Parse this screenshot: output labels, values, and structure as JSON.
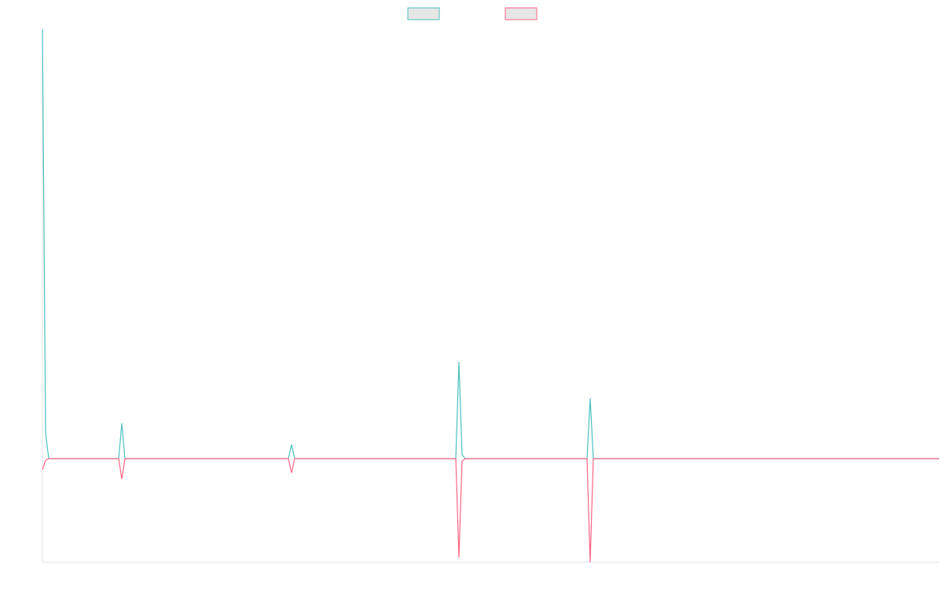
{
  "chart_data": {
    "type": "line",
    "x": [
      0,
      4,
      8,
      97,
      101,
      105,
      313,
      317,
      321,
      526,
      530,
      534,
      538,
      693,
      697,
      701,
      1141
    ],
    "series": [
      {
        "color": "#4bc0c0",
        "values": [
          547,
          33,
          0,
          0,
          45,
          0,
          0,
          18,
          0,
          0,
          123,
          5,
          0,
          0,
          77,
          0,
          0
        ]
      },
      {
        "color": "#ff6384",
        "values": [
          -14,
          -2,
          0,
          0,
          -26,
          0,
          0,
          -18,
          0,
          0,
          -126,
          -3,
          0,
          0,
          -132,
          0,
          0
        ]
      }
    ],
    "xlim": [
      0,
      1141
    ],
    "ylim": [
      -132,
      547
    ],
    "legend": "top"
  }
}
